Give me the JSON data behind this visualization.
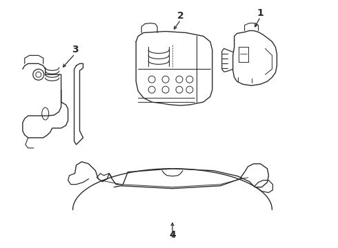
{
  "background_color": "#ffffff",
  "line_color": "#2a2a2a",
  "line_width": 1.0,
  "label_fontsize": 10,
  "label_fontweight": "bold",
  "figsize": [
    4.9,
    3.6
  ],
  "dpi": 100
}
